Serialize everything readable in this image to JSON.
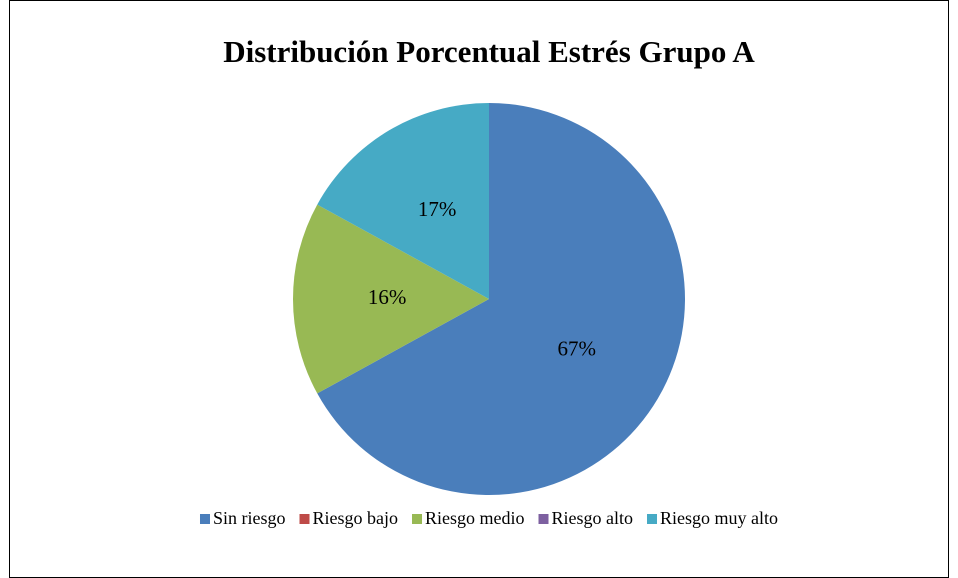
{
  "chart_data": {
    "type": "pie",
    "title": "Distribución Porcentual Estrés Grupo A",
    "categories": [
      "Sin riesgo",
      "Riesgo bajo",
      "Riesgo medio",
      "Riesgo alto",
      "Riesgo muy alto"
    ],
    "values": [
      67,
      0,
      16,
      0,
      17
    ],
    "value_labels": [
      "67%",
      null,
      "16%",
      null,
      "17%"
    ],
    "colors": [
      "#4a7ebb",
      "#be4b48",
      "#98b954",
      "#7d60a0",
      "#46aac5"
    ],
    "legend": "bottom"
  }
}
